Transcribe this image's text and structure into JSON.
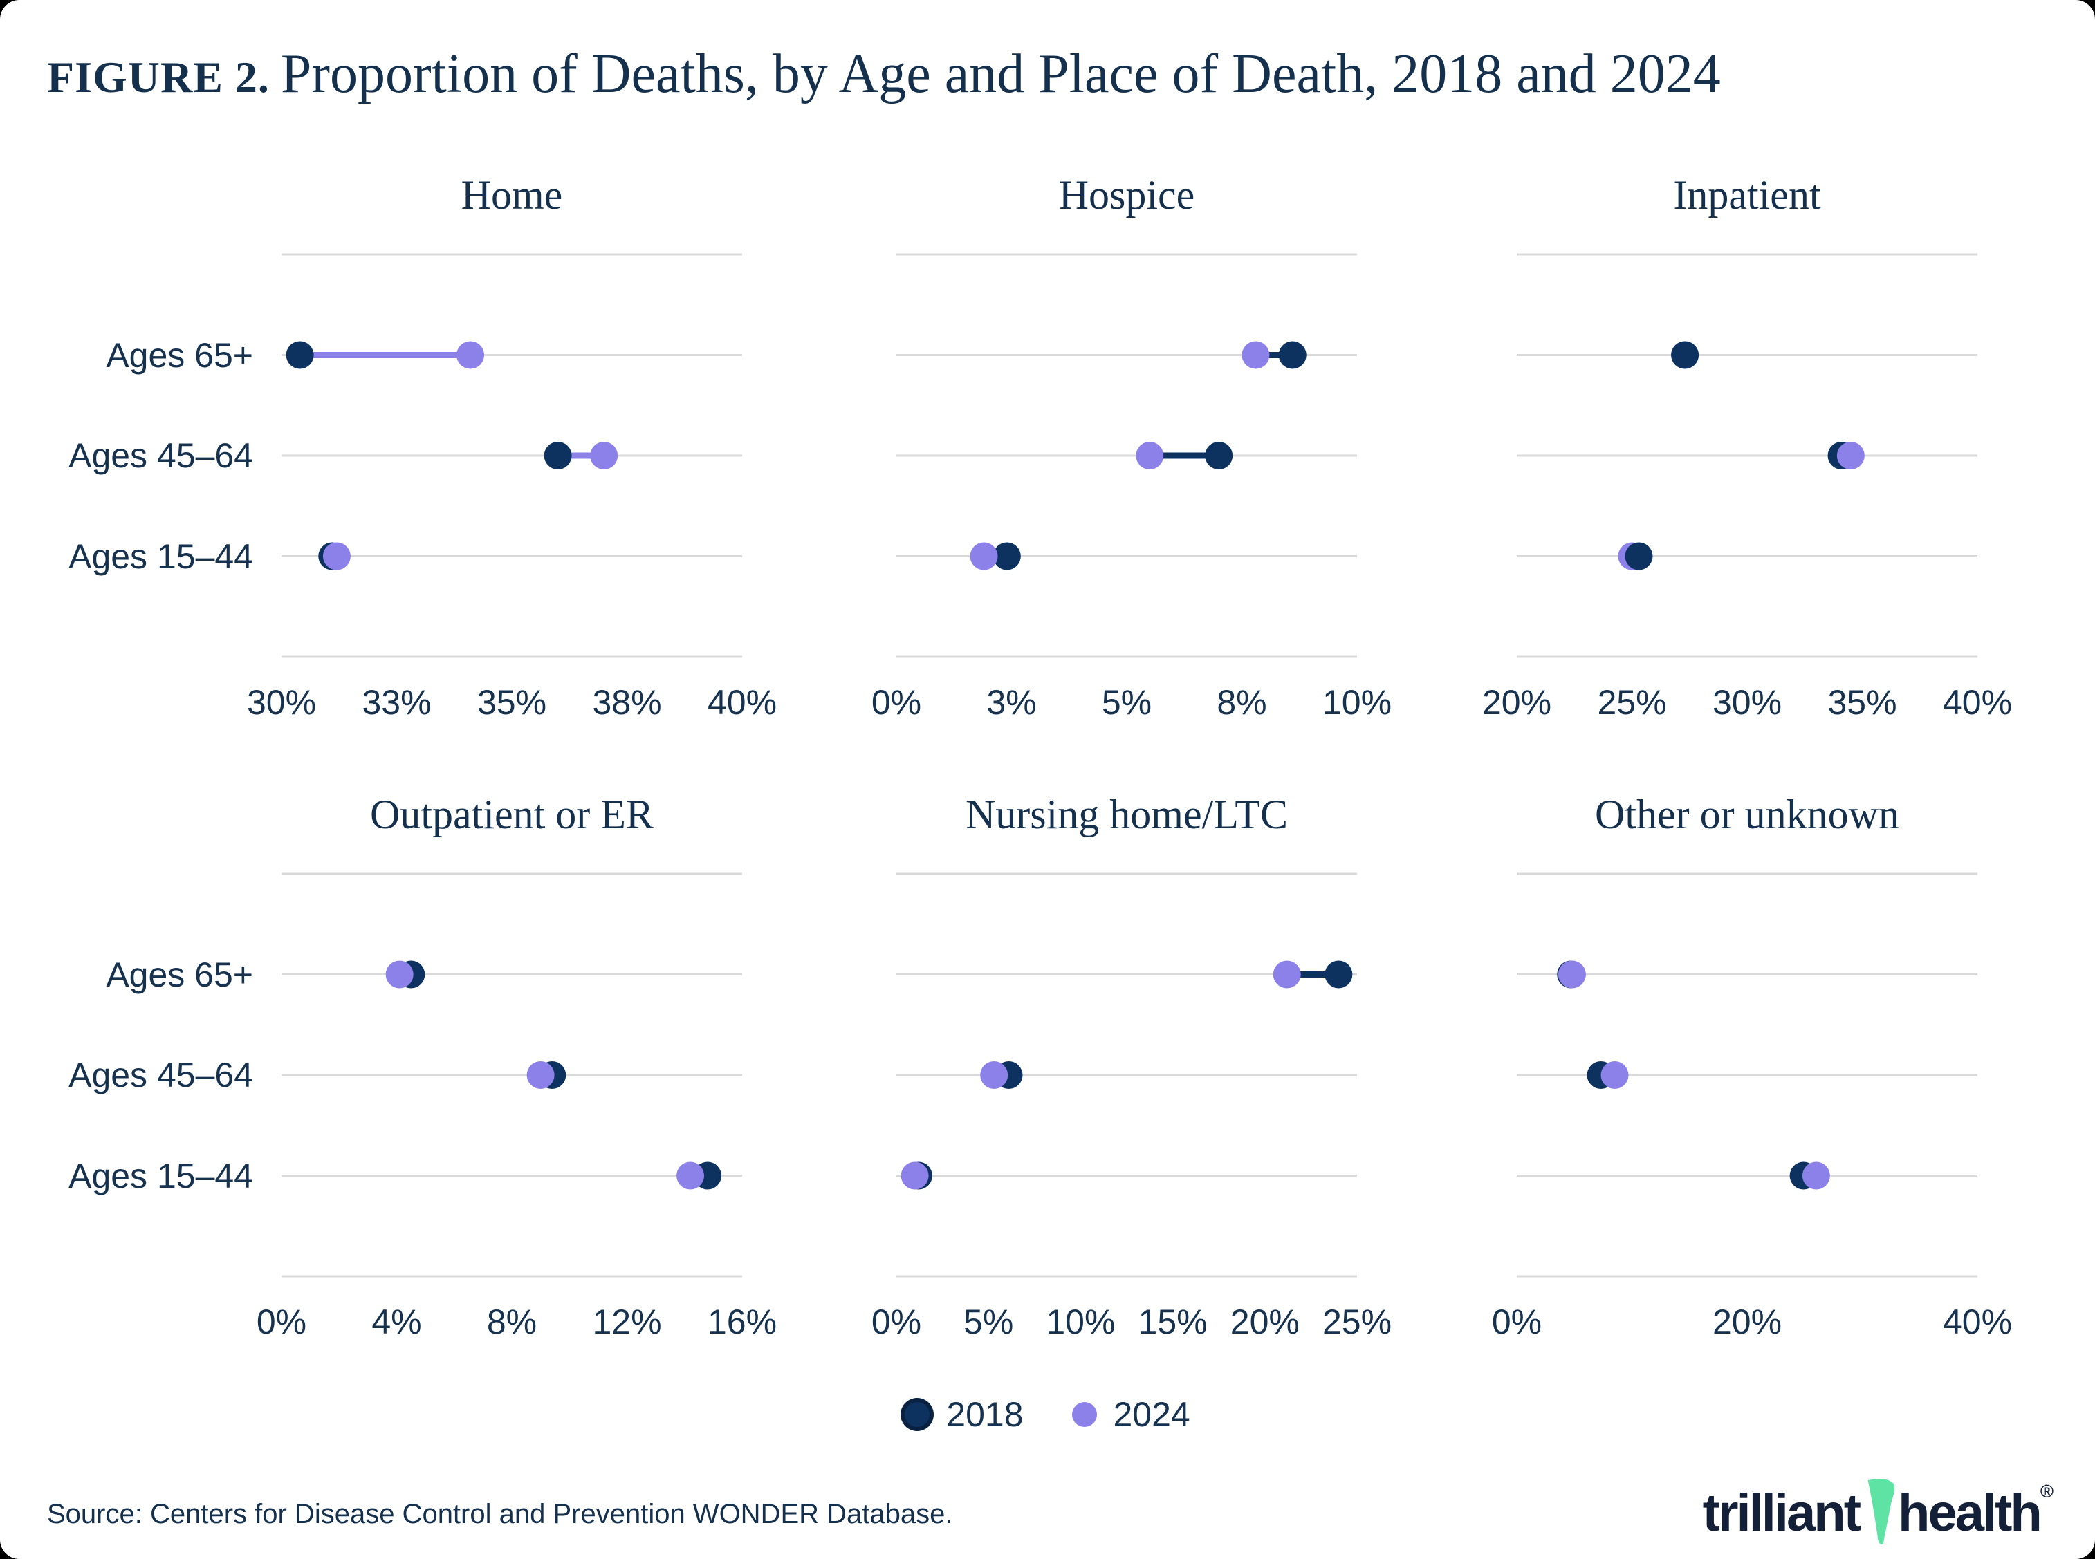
{
  "header": {
    "label": "FIGURE 2.",
    "title": "Proportion of Deaths, by Age and Place of Death, 2018 and 2024"
  },
  "colors": {
    "navy": "#0D3260",
    "navy_dark": "#0A2240",
    "purple": "#8C80E9",
    "grid": "#D9D9D9",
    "text": "#16324F",
    "mint": "#5FE3A4",
    "logo_navy": "#141F38"
  },
  "row_labels": [
    "Ages 65+",
    "Ages 45–64",
    "Ages 15–44"
  ],
  "legend": {
    "items": [
      {
        "label": "2018",
        "color_key": "navy"
      },
      {
        "label": "2024",
        "color_key": "purple"
      }
    ]
  },
  "footer": {
    "source": "Source: Centers for Disease Control and Prevention WONDER Database.",
    "logo_text_1": "trilliant",
    "logo_text_2": "health",
    "logo_reg": "®"
  },
  "chart_data": [
    {
      "type": "dumbbell",
      "title": "Home",
      "xmin": 30,
      "xmax": 40,
      "xticks": [
        {
          "value": 30,
          "label": "30%"
        },
        {
          "value": 32.5,
          "label": "33%"
        },
        {
          "value": 35,
          "label": "35%"
        },
        {
          "value": 37.5,
          "label": "38%"
        },
        {
          "value": 40,
          "label": "40%"
        }
      ],
      "rows": [
        {
          "label": "Ages 65+",
          "v2018": 30.4,
          "v2024": 34.1
        },
        {
          "label": "Ages 45–64",
          "v2018": 36.0,
          "v2024": 37.0
        },
        {
          "label": "Ages 15–44",
          "v2018": 31.1,
          "v2024": 31.2
        }
      ]
    },
    {
      "type": "dumbbell",
      "title": "Hospice",
      "xmin": 0,
      "xmax": 10,
      "xticks": [
        {
          "value": 0,
          "label": "0%"
        },
        {
          "value": 2.5,
          "label": "3%"
        },
        {
          "value": 5,
          "label": "5%"
        },
        {
          "value": 7.5,
          "label": "8%"
        },
        {
          "value": 10,
          "label": "10%"
        }
      ],
      "rows": [
        {
          "label": "Ages 65+",
          "v2018": 8.6,
          "v2024": 7.8
        },
        {
          "label": "Ages 45–64",
          "v2018": 7.0,
          "v2024": 5.5
        },
        {
          "label": "Ages 15–44",
          "v2018": 2.4,
          "v2024": 1.9
        }
      ]
    },
    {
      "type": "dumbbell",
      "title": "Inpatient",
      "xmin": 20,
      "xmax": 40,
      "xticks": [
        {
          "value": 20,
          "label": "20%"
        },
        {
          "value": 25,
          "label": "25%"
        },
        {
          "value": 30,
          "label": "30%"
        },
        {
          "value": 35,
          "label": "35%"
        },
        {
          "value": 40,
          "label": "40%"
        }
      ],
      "rows": [
        {
          "label": "Ages 65+",
          "v2018": 27.3,
          "v2024": 27.3,
          "top": "2018"
        },
        {
          "label": "Ages 45–64",
          "v2018": 34.1,
          "v2024": 34.5
        },
        {
          "label": "Ages 15–44",
          "v2018": 25.3,
          "v2024": 25.0,
          "top": "2018"
        }
      ]
    },
    {
      "type": "dumbbell",
      "title": "Outpatient or ER",
      "xmin": 0,
      "xmax": 16,
      "xticks": [
        {
          "value": 0,
          "label": "0%"
        },
        {
          "value": 4,
          "label": "4%"
        },
        {
          "value": 8,
          "label": "8%"
        },
        {
          "value": 12,
          "label": "12%"
        },
        {
          "value": 16,
          "label": "16%"
        }
      ],
      "rows": [
        {
          "label": "Ages 65+",
          "v2018": 4.5,
          "v2024": 4.1
        },
        {
          "label": "Ages 45–64",
          "v2018": 9.4,
          "v2024": 9.0
        },
        {
          "label": "Ages 15–44",
          "v2018": 14.8,
          "v2024": 14.2
        }
      ]
    },
    {
      "type": "dumbbell",
      "title": "Nursing home/LTC",
      "xmin": 0,
      "xmax": 25,
      "xticks": [
        {
          "value": 0,
          "label": "0%"
        },
        {
          "value": 5,
          "label": "5%"
        },
        {
          "value": 10,
          "label": "10%"
        },
        {
          "value": 15,
          "label": "15%"
        },
        {
          "value": 20,
          "label": "20%"
        },
        {
          "value": 25,
          "label": "25%"
        }
      ],
      "rows": [
        {
          "label": "Ages 65+",
          "v2018": 24.0,
          "v2024": 21.2
        },
        {
          "label": "Ages 45–64",
          "v2018": 6.1,
          "v2024": 5.3
        },
        {
          "label": "Ages 15–44",
          "v2018": 1.2,
          "v2024": 1.0
        }
      ]
    },
    {
      "type": "dumbbell",
      "title": "Other or unknown",
      "xmin": 0,
      "xmax": 40,
      "xticks": [
        {
          "value": 0,
          "label": "0%"
        },
        {
          "value": 20,
          "label": "20%"
        },
        {
          "value": 40,
          "label": "40%"
        }
      ],
      "rows": [
        {
          "label": "Ages 65+",
          "v2018": 4.7,
          "v2024": 4.8
        },
        {
          "label": "Ages 45–64",
          "v2018": 7.3,
          "v2024": 8.5
        },
        {
          "label": "Ages 15–44",
          "v2018": 24.9,
          "v2024": 26.0
        }
      ]
    }
  ]
}
